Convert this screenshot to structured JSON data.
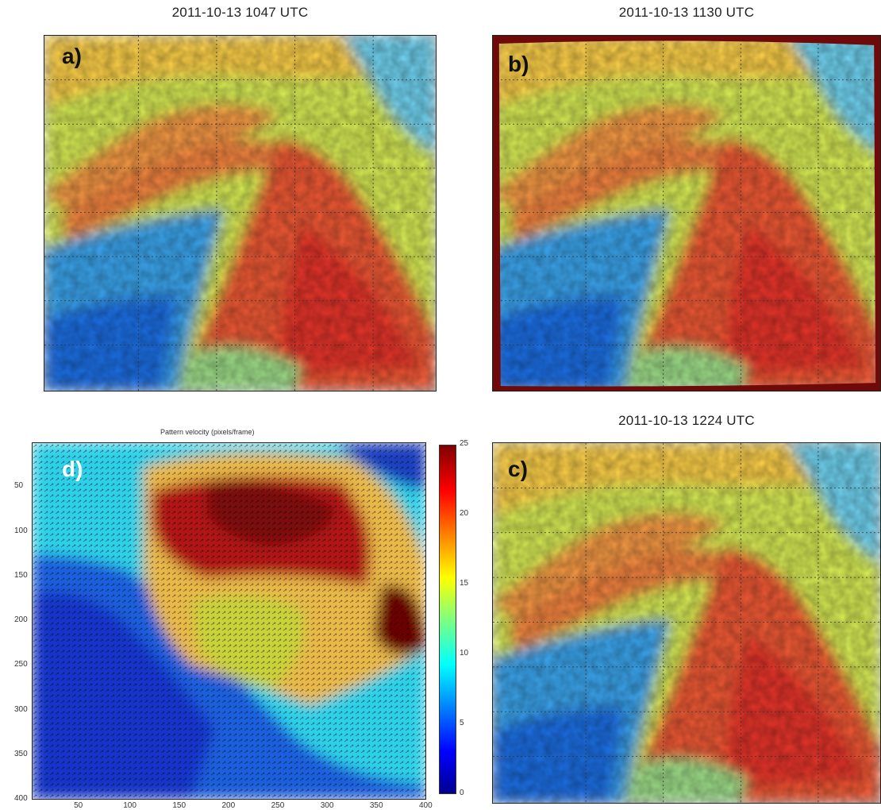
{
  "panels": {
    "a": {
      "time": "2011-10-13 1047  UTC",
      "label": "a)"
    },
    "b": {
      "time": "2011-10-13 1130  UTC",
      "label": "b)"
    },
    "c": {
      "time": "2011-10-13 1224  UTC",
      "label": "c)"
    },
    "d": {
      "title": "Pattern velocity (pixels/frame)",
      "label": "d)"
    }
  },
  "d_axes": {
    "x_ticks": [
      "50",
      "100",
      "150",
      "200",
      "250",
      "300",
      "350",
      "400"
    ],
    "y_ticks": [
      "50",
      "100",
      "150",
      "200",
      "250",
      "300",
      "350",
      "400"
    ],
    "xlim": [
      0,
      400
    ],
    "ylim": [
      0,
      400
    ]
  },
  "colorbar": {
    "ticks": [
      "25",
      "20",
      "15",
      "10",
      "5",
      "0"
    ],
    "range": [
      0,
      25
    ]
  }
}
